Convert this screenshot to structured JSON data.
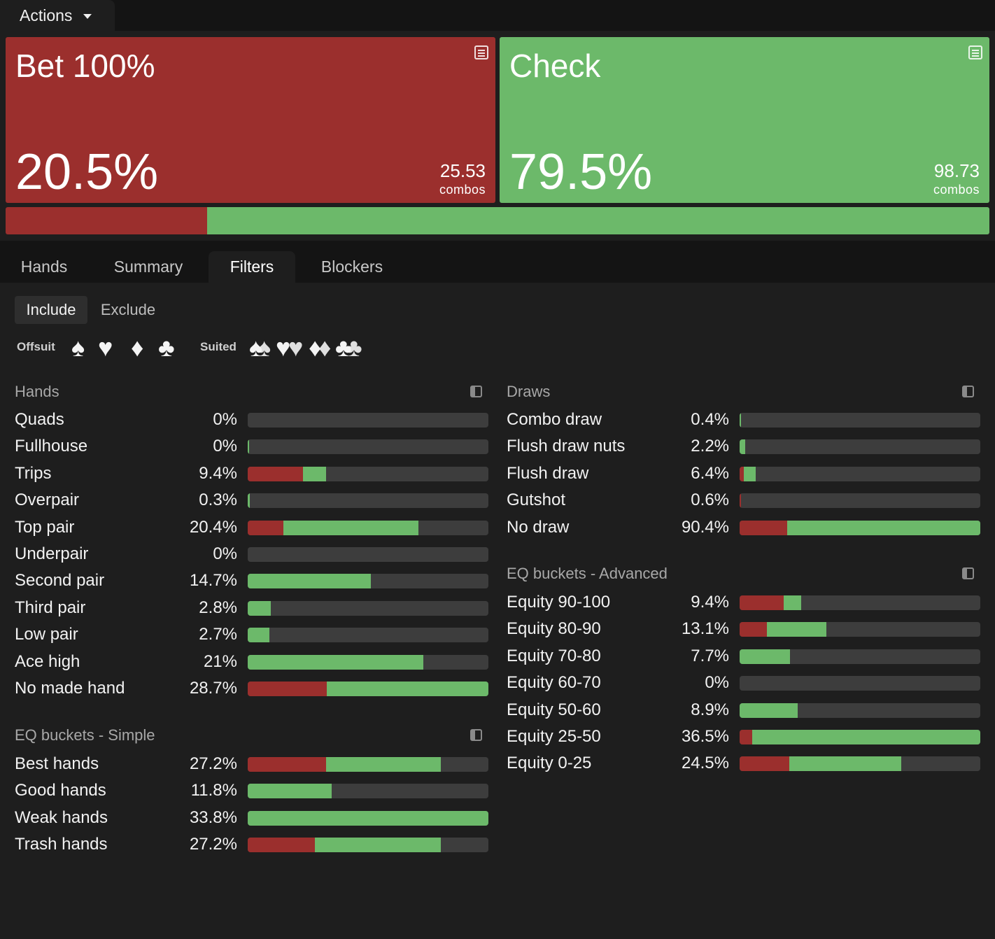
{
  "colors": {
    "bet": "#9b2f2d",
    "check": "#6cb96a",
    "bar_bg": "#3d3d3d"
  },
  "header": {
    "actions_label": "Actions",
    "caret_icon": "chevron-down-icon"
  },
  "actions": [
    {
      "name": "Bet 100%",
      "pct": "20.5%",
      "combos": "25.53",
      "combos_label": "combos",
      "share": 0.205
    },
    {
      "name": "Check",
      "pct": "79.5%",
      "combos": "98.73",
      "combos_label": "combos",
      "share": 0.795
    }
  ],
  "tabs": [
    "Hands",
    "Summary",
    "Filters",
    "Blockers"
  ],
  "active_tab": "Filters",
  "mode": {
    "include": "Include",
    "exclude": "Exclude",
    "active": "Include"
  },
  "suits": {
    "offsuit_label": "Offsuit",
    "suited_label": "Suited",
    "offsuit": [
      "♠",
      "♥",
      "♦",
      "♣"
    ],
    "suited": [
      "♠",
      "♥",
      "♦",
      "♣"
    ]
  },
  "sections": {
    "hands": {
      "title": "Hands",
      "rows": [
        {
          "label": "Quads",
          "value": "0%",
          "bet": 0,
          "check": 0
        },
        {
          "label": "Fullhouse",
          "value": "0%",
          "bet": 0,
          "check": 0.005
        },
        {
          "label": "Trips",
          "value": "9.4%",
          "bet": 0.23,
          "check": 0.095
        },
        {
          "label": "Overpair",
          "value": "0.3%",
          "bet": 0,
          "check": 0.01
        },
        {
          "label": "Top pair",
          "value": "20.4%",
          "bet": 0.148,
          "check": 0.561
        },
        {
          "label": "Underpair",
          "value": "0%",
          "bet": 0,
          "check": 0
        },
        {
          "label": "Second pair",
          "value": "14.7%",
          "bet": 0,
          "check": 0.512
        },
        {
          "label": "Third pair",
          "value": "2.8%",
          "bet": 0,
          "check": 0.096
        },
        {
          "label": "Low pair",
          "value": "2.7%",
          "bet": 0,
          "check": 0.09
        },
        {
          "label": "Ace high",
          "value": "21%",
          "bet": 0,
          "check": 0.73
        },
        {
          "label": "No made hand",
          "value": "28.7%",
          "bet": 0.328,
          "check": 0.672
        }
      ]
    },
    "eq_simple": {
      "title": "EQ buckets - Simple",
      "rows": [
        {
          "label": "Best hands",
          "value": "27.2%",
          "bet": 0.325,
          "check": 0.477
        },
        {
          "label": "Good hands",
          "value": "11.8%",
          "bet": 0,
          "check": 0.35
        },
        {
          "label": "Weak hands",
          "value": "33.8%",
          "bet": 0,
          "check": 1
        },
        {
          "label": "Trash hands",
          "value": "27.2%",
          "bet": 0.279,
          "check": 0.523
        }
      ]
    },
    "draws": {
      "title": "Draws",
      "rows": [
        {
          "label": "Combo draw",
          "value": "0.4%",
          "bet": 0,
          "check": 0.005
        },
        {
          "label": "Flush draw nuts",
          "value": "2.2%",
          "bet": 0,
          "check": 0.023
        },
        {
          "label": "Flush draw",
          "value": "6.4%",
          "bet": 0.017,
          "check": 0.05
        },
        {
          "label": "Gutshot",
          "value": "0.6%",
          "bet": 0.005,
          "check": 0
        },
        {
          "label": "No draw",
          "value": "90.4%",
          "bet": 0.198,
          "check": 0.802
        }
      ]
    },
    "eq_advanced": {
      "title": "EQ buckets - Advanced",
      "rows": [
        {
          "label": "Equity 90-100",
          "value": "9.4%",
          "bet": 0.183,
          "check": 0.073
        },
        {
          "label": "Equity 80-90",
          "value": "13.1%",
          "bet": 0.113,
          "check": 0.247
        },
        {
          "label": "Equity 70-80",
          "value": "7.7%",
          "bet": 0,
          "check": 0.209
        },
        {
          "label": "Equity 60-70",
          "value": "0%",
          "bet": 0,
          "check": 0
        },
        {
          "label": "Equity 50-60",
          "value": "8.9%",
          "bet": 0,
          "check": 0.241
        },
        {
          "label": "Equity 25-50",
          "value": "36.5%",
          "bet": 0.052,
          "check": 0.948
        },
        {
          "label": "Equity 0-25",
          "value": "24.5%",
          "bet": 0.206,
          "check": 0.465
        }
      ]
    }
  }
}
